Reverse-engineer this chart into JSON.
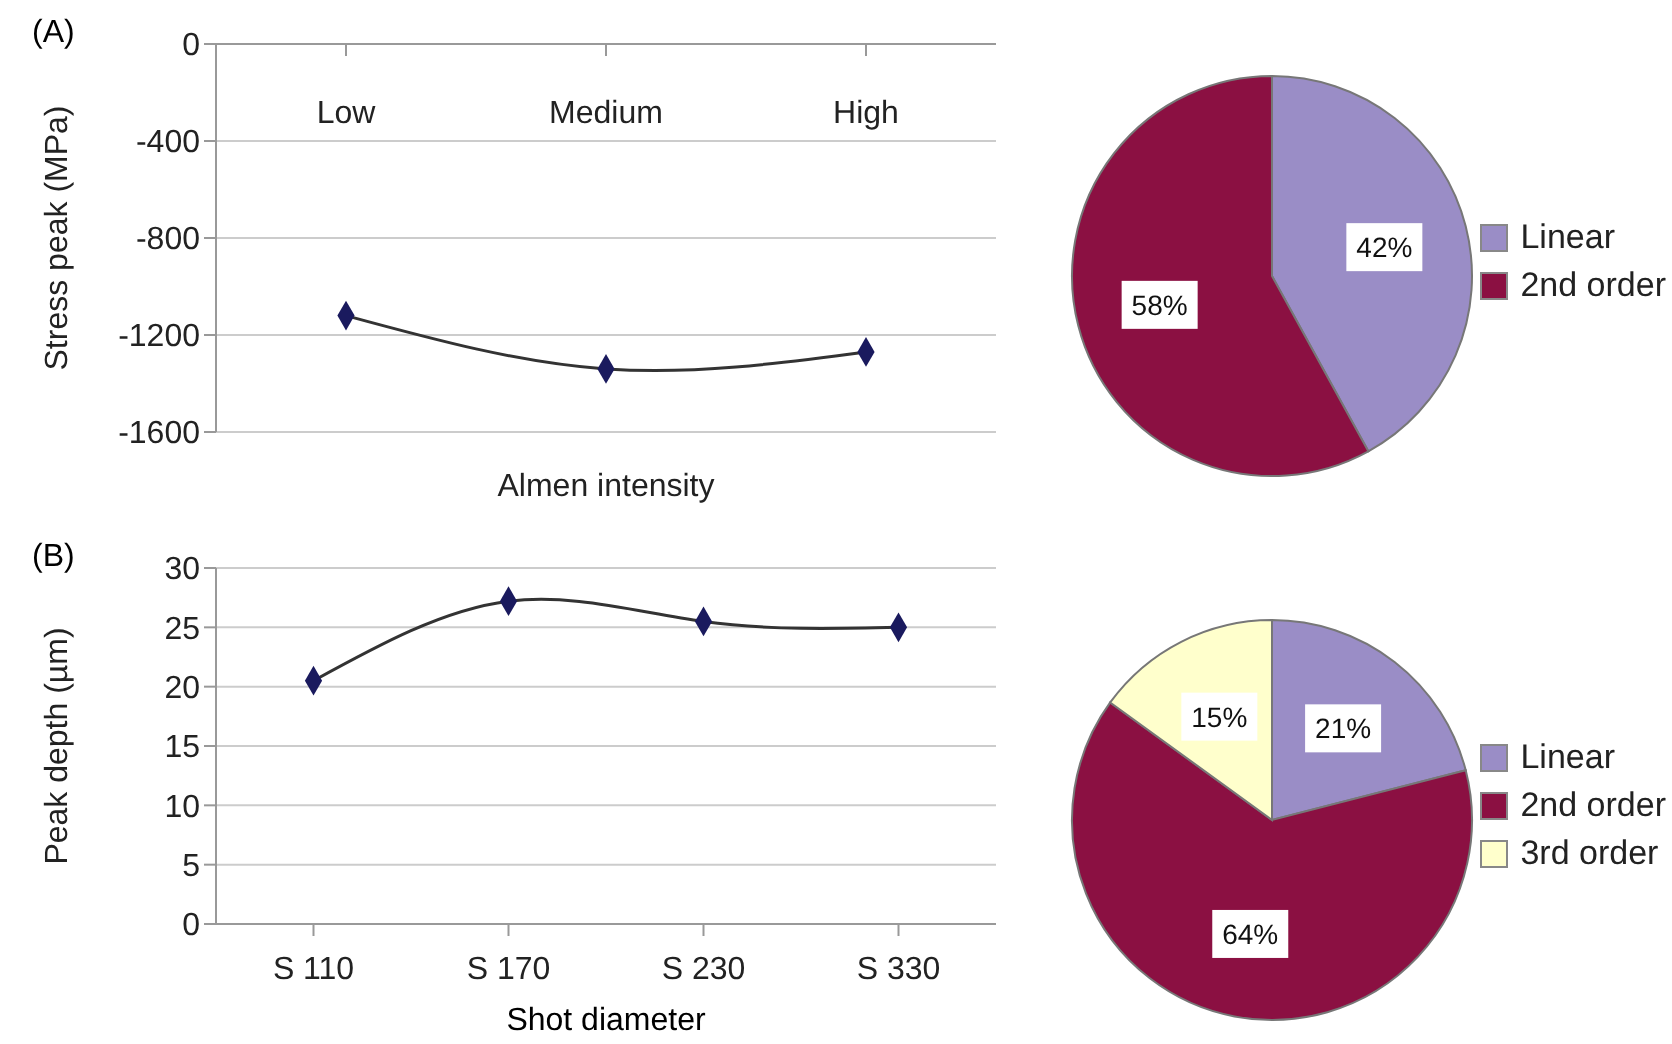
{
  "chart_data": [
    {
      "type": "line",
      "title": "(A)",
      "xlabel": "Almen intensity",
      "ylabel": "Stress peak (MPa)",
      "categories": [
        "Low",
        "Medium",
        "High"
      ],
      "ylim": [
        -1600,
        0
      ],
      "yticks": [
        -1600,
        -1200,
        -800,
        -400,
        0
      ],
      "grid": "y",
      "series": [
        {
          "type": "line",
          "color": "#333333",
          "marker": "none",
          "line_style": "solid",
          "values": [
            -1120,
            -1340,
            -1270
          ]
        },
        {
          "type": "scatter",
          "color": "#1a1a5e",
          "marker": "diamond",
          "values": [
            -1120,
            -1340,
            -1270
          ]
        }
      ]
    },
    {
      "type": "pie",
      "categories": [
        "Linear",
        "2nd order"
      ],
      "values": [
        42,
        58
      ],
      "colors": [
        "#9a8dc6",
        "#8b1042"
      ],
      "value_labels": [
        "42%",
        "58%"
      ],
      "legend": "right"
    },
    {
      "type": "line",
      "title": "(B)",
      "xlabel": "Shot diameter",
      "ylabel": "Peak depth (µm)",
      "categories": [
        "S 110",
        "S 170",
        "S 230",
        "S 330"
      ],
      "ylim": [
        0,
        30
      ],
      "yticks": [
        0,
        5,
        10,
        15,
        20,
        25,
        30
      ],
      "grid": "y",
      "series": [
        {
          "type": "line",
          "color": "#333333",
          "marker": "none",
          "line_style": "solid",
          "values": [
            20.5,
            27.2,
            25.5,
            25
          ]
        },
        {
          "type": "scatter",
          "color": "#1a1a5e",
          "marker": "diamond",
          "values": [
            20.5,
            27.2,
            25.5,
            25
          ]
        }
      ]
    },
    {
      "type": "pie",
      "categories": [
        "Linear",
        "2nd order",
        "3rd order"
      ],
      "values": [
        21,
        64,
        15
      ],
      "colors": [
        "#9a8dc6",
        "#8b1042",
        "#ffffcc"
      ],
      "value_labels": [
        "21%",
        "64%",
        "15%"
      ],
      "legend": "right"
    }
  ]
}
